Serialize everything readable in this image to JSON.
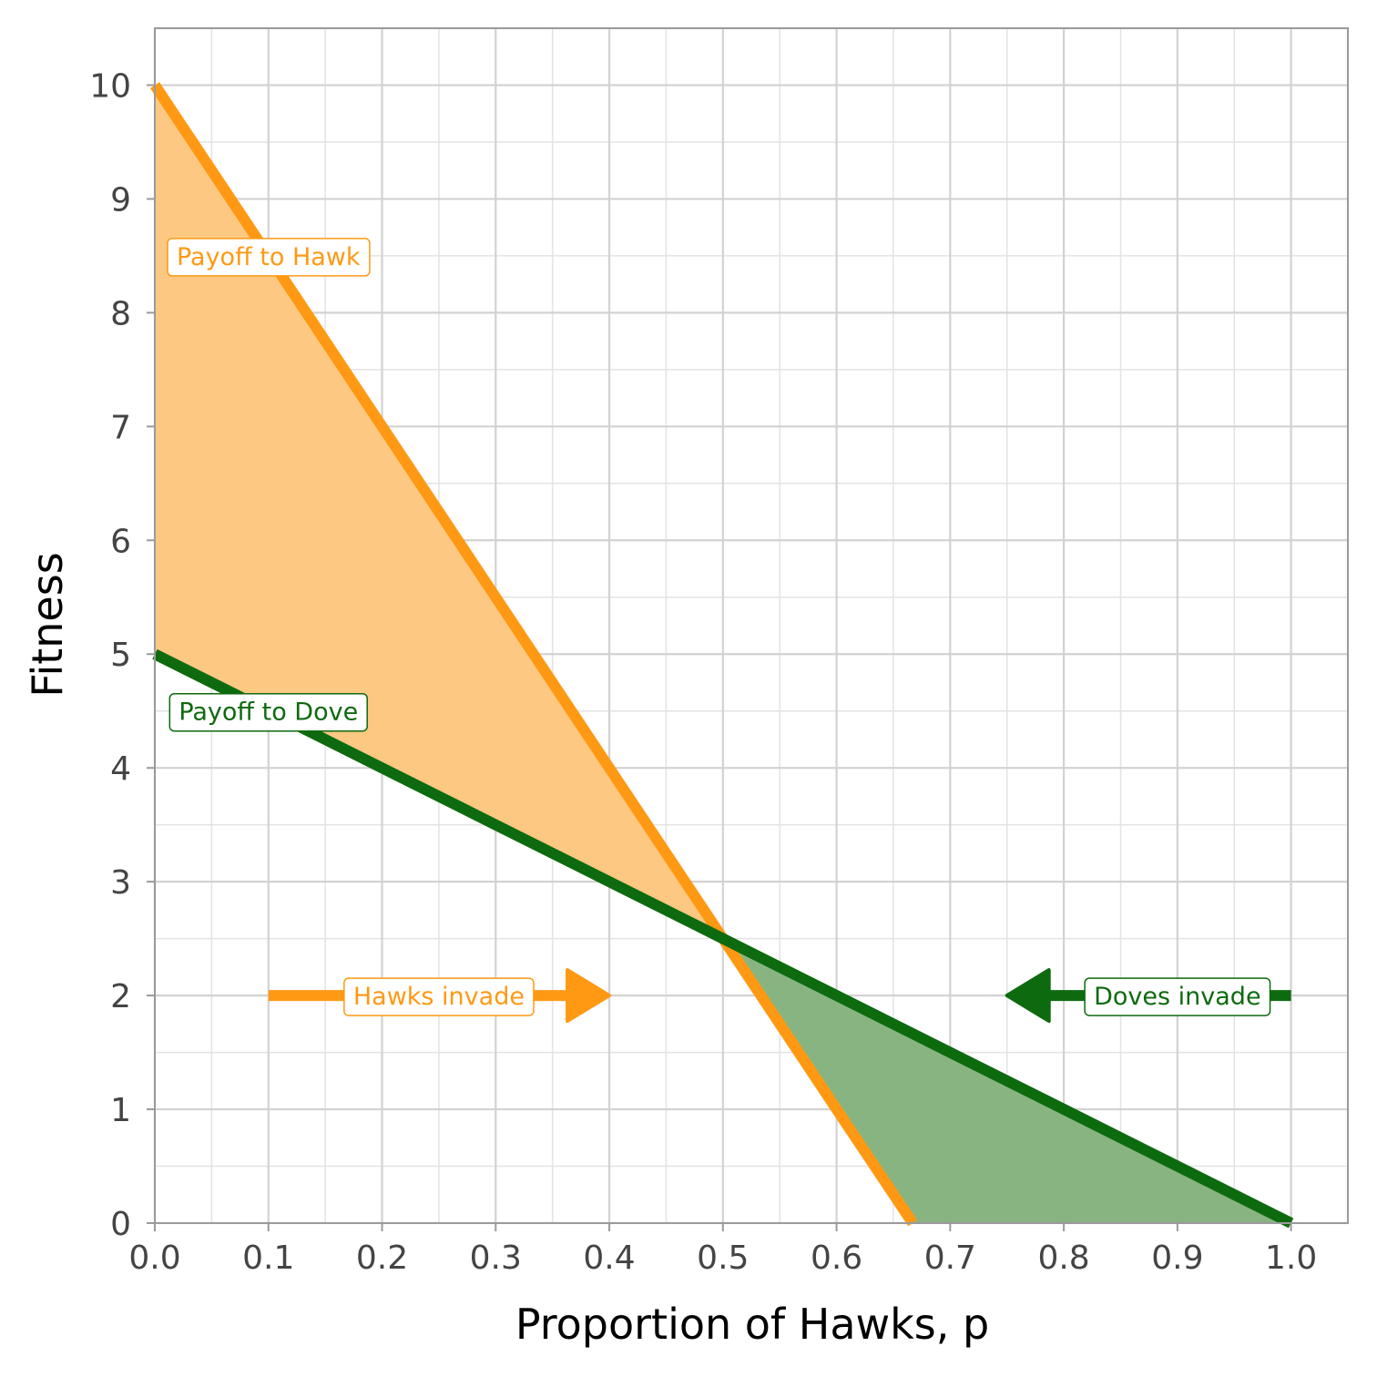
{
  "chart_data": {
    "type": "line",
    "xlabel": "Proportion of Hawks, p",
    "ylabel": "Fitness",
    "xlim": [
      0,
      1.05
    ],
    "ylim": [
      0,
      10.5
    ],
    "x_ticks": [
      "0.0",
      "0.1",
      "0.2",
      "0.3",
      "0.4",
      "0.5",
      "0.6",
      "0.7",
      "0.8",
      "0.9",
      "1.0"
    ],
    "y_ticks": [
      "0",
      "1",
      "2",
      "3",
      "4",
      "5",
      "6",
      "7",
      "8",
      "9",
      "10"
    ],
    "grid": true,
    "colors": {
      "hawk": "#FF9914",
      "hawk_fill": "#FDC982",
      "dove": "#0E6A0E",
      "dove_fill": "#88B482"
    },
    "series": [
      {
        "name": "Payoff to Hawk",
        "x": [
          0,
          0.1,
          0.2,
          0.3,
          0.4,
          0.5,
          0.6,
          0.667
        ],
        "y": [
          10,
          8.5,
          7,
          5.5,
          4,
          2.5,
          1,
          0
        ]
      },
      {
        "name": "Payoff to Dove",
        "x": [
          0,
          0.1,
          0.2,
          0.3,
          0.4,
          0.5,
          0.6,
          0.7,
          0.8,
          0.9,
          1.0
        ],
        "y": [
          5,
          4.5,
          4,
          3.5,
          3,
          2.5,
          2,
          1.5,
          1,
          0.5,
          0
        ]
      }
    ],
    "annotations": [
      {
        "text": "Payoff to Hawk",
        "series": "Payoff to Hawk",
        "x": 0.1,
        "y": 8.5
      },
      {
        "text": "Payoff to Dove",
        "series": "Payoff to Dove",
        "x": 0.1,
        "y": 4.5
      },
      {
        "text": "Hawks invade",
        "series": "Payoff to Hawk",
        "x": 0.25,
        "y": 2,
        "arrow_from": 0.1,
        "arrow_to": 0.4
      },
      {
        "text": "Doves invade",
        "series": "Payoff to Dove",
        "x": 0.9,
        "y": 2,
        "arrow_from": 1.0,
        "arrow_to": 0.75
      }
    ]
  }
}
